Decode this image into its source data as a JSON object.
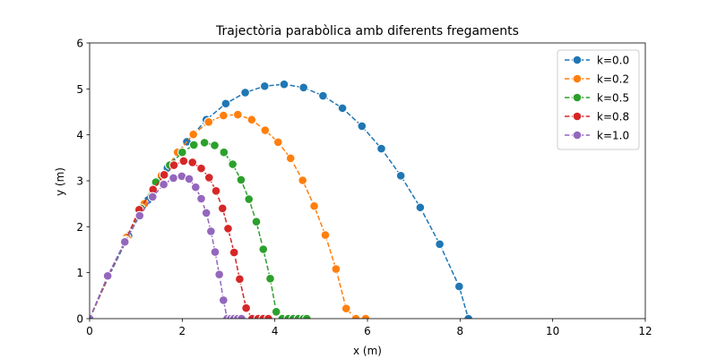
{
  "chart_data": {
    "type": "line",
    "title": "Trajectòria parabòlica amb diferents fregaments",
    "xlabel": "x (m)",
    "ylabel": "y (m)",
    "xlim": [
      0,
      12
    ],
    "ylim": [
      0,
      6
    ],
    "xticks": [
      "0",
      "2",
      "4",
      "6",
      "8",
      "10",
      "12"
    ],
    "yticks": [
      "0",
      "1",
      "2",
      "3",
      "4",
      "5",
      "6"
    ],
    "grid": false,
    "legend_position": "top-right",
    "series": [
      {
        "name": "k=0.0",
        "color": "#1f77b4",
        "x": [
          0.0,
          0.42,
          0.84,
          1.26,
          1.68,
          2.1,
          2.52,
          2.94,
          3.36,
          3.78,
          4.2,
          4.62,
          5.04,
          5.46,
          5.88,
          6.3,
          6.72,
          7.14,
          7.56,
          7.98,
          8.18
        ],
        "y": [
          0.0,
          0.93,
          1.8,
          2.58,
          3.28,
          3.85,
          4.33,
          4.68,
          4.92,
          5.06,
          5.1,
          5.03,
          4.85,
          4.58,
          4.19,
          3.7,
          3.11,
          2.42,
          1.62,
          0.7,
          0.0
        ]
      },
      {
        "name": "k=0.2",
        "color": "#ff7f0e",
        "x": [
          0.0,
          0.41,
          0.8,
          1.18,
          1.55,
          1.9,
          2.24,
          2.57,
          2.89,
          3.2,
          3.5,
          3.79,
          4.07,
          4.34,
          4.6,
          4.85,
          5.09,
          5.32,
          5.54,
          5.75,
          5.96
        ],
        "y": [
          0.0,
          0.93,
          1.77,
          2.5,
          3.11,
          3.62,
          4.01,
          4.28,
          4.42,
          4.44,
          4.33,
          4.1,
          3.84,
          3.49,
          3.01,
          2.45,
          1.82,
          1.08,
          0.22,
          0.0,
          0.0
        ]
      },
      {
        "name": "k=0.5",
        "color": "#2ca02c",
        "x": [
          0.0,
          0.4,
          0.78,
          1.11,
          1.43,
          1.73,
          2.0,
          2.25,
          2.48,
          2.7,
          2.9,
          3.09,
          3.27,
          3.44,
          3.6,
          3.75,
          3.9,
          4.03,
          4.16,
          4.29,
          4.4,
          4.51,
          4.62,
          4.69
        ],
        "y": [
          0.0,
          0.93,
          1.7,
          2.4,
          2.97,
          3.34,
          3.62,
          3.78,
          3.83,
          3.77,
          3.62,
          3.36,
          3.02,
          2.6,
          2.11,
          1.51,
          0.87,
          0.15,
          0.0,
          0.0,
          0.0,
          0.0,
          0.0,
          0.0
        ]
      },
      {
        "name": "k=0.8",
        "color": "#d62728",
        "x": [
          0.0,
          0.4,
          0.77,
          1.07,
          1.37,
          1.61,
          1.82,
          2.03,
          2.22,
          2.41,
          2.58,
          2.73,
          2.87,
          2.99,
          3.12,
          3.24,
          3.38,
          3.51,
          3.64,
          3.75,
          3.86
        ],
        "y": [
          0.0,
          0.93,
          1.69,
          2.37,
          2.81,
          3.13,
          3.34,
          3.43,
          3.4,
          3.27,
          3.07,
          2.78,
          2.4,
          1.96,
          1.44,
          0.86,
          0.23,
          0.0,
          0.0,
          0.0,
          0.0
        ]
      },
      {
        "name": "k=1.0",
        "color": "#9467bd",
        "x": [
          0.0,
          0.39,
          0.76,
          1.08,
          1.36,
          1.6,
          1.81,
          1.99,
          2.15,
          2.29,
          2.41,
          2.52,
          2.62,
          2.71,
          2.8,
          2.89,
          2.97,
          3.05,
          3.12,
          3.2,
          3.28
        ],
        "y": [
          0.0,
          0.93,
          1.67,
          2.24,
          2.65,
          2.92,
          3.06,
          3.1,
          3.04,
          2.86,
          2.61,
          2.3,
          1.9,
          1.45,
          0.96,
          0.4,
          0.0,
          0.0,
          0.0,
          0.0,
          0.0
        ]
      }
    ]
  }
}
